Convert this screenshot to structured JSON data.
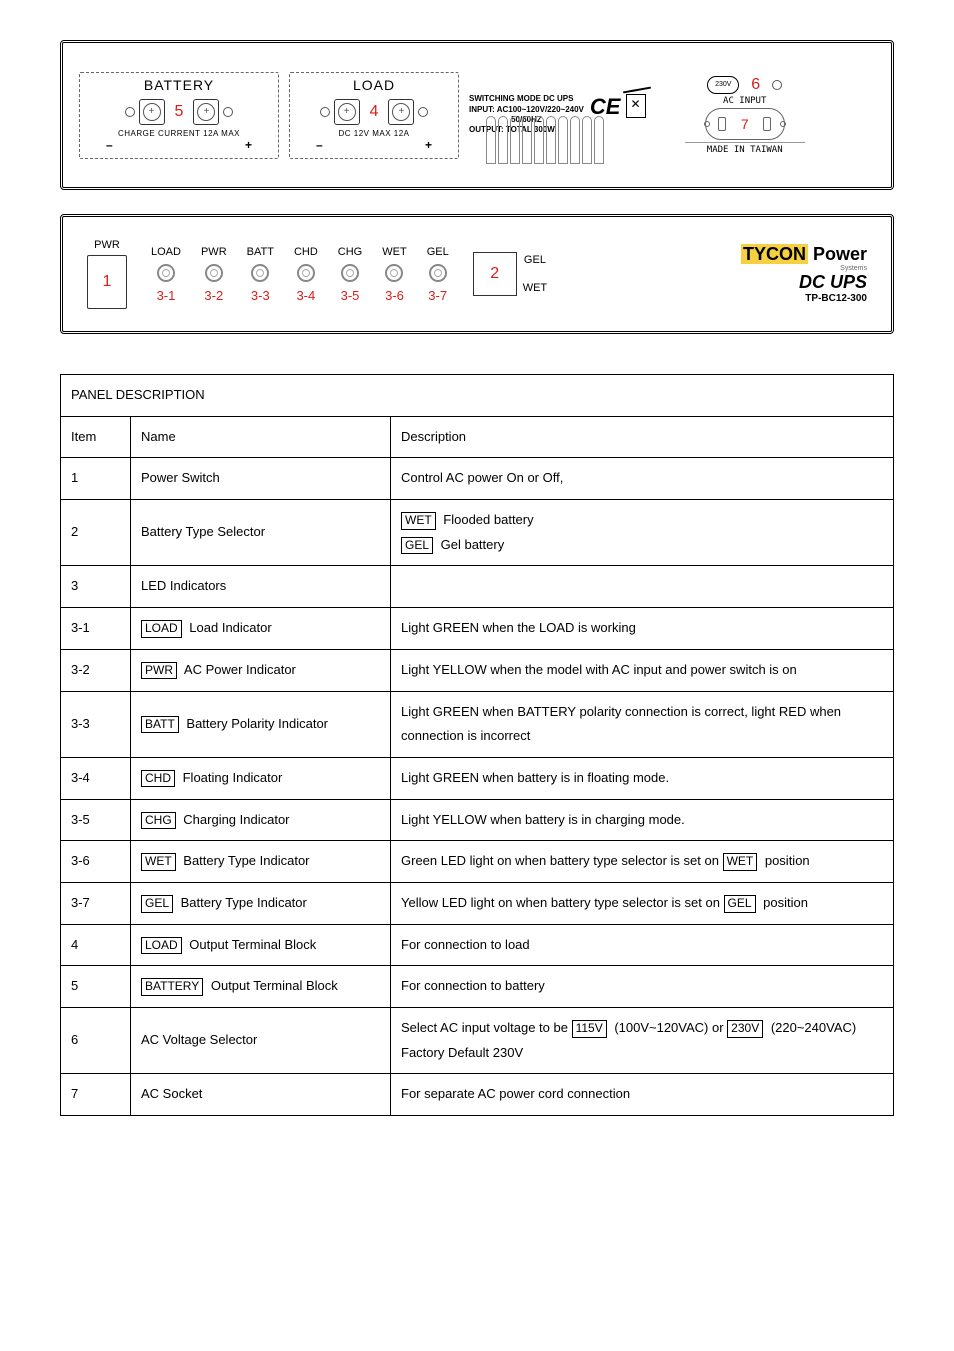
{
  "topDiagram": {
    "battery": {
      "title": "BATTERY",
      "num": "5",
      "sub": "CHARGE CURRENT 12A MAX",
      "minus": "–",
      "plus": "+"
    },
    "load": {
      "title": "LOAD",
      "num": "4",
      "sub": "DC 12V   MAX 12A",
      "minus": "–",
      "plus": "+"
    },
    "spec": {
      "l1": "SWITCHING MODE DC UPS",
      "l2": "INPUT: AC100~120V/220~240V",
      "l3": "50/60HZ",
      "l4": "OUTPUT: TOTAL 300W"
    },
    "ce": "CE",
    "voltSel": "230V",
    "num6": "6",
    "num7": "7",
    "acInput": "AC INPUT",
    "made": "MADE  IN  TAIWAN"
  },
  "bottomDiagram": {
    "pwr": {
      "label": "PWR",
      "num": "1"
    },
    "leds": [
      {
        "label": "LOAD",
        "num": "3-1"
      },
      {
        "label": "PWR",
        "num": "3-2"
      },
      {
        "label": "BATT",
        "num": "3-3"
      },
      {
        "label": "CHD",
        "num": "3-4"
      },
      {
        "label": "CHG",
        "num": "3-5"
      },
      {
        "label": "WET",
        "num": "3-6"
      },
      {
        "label": "GEL",
        "num": "3-7"
      }
    ],
    "selector": {
      "top": "GEL",
      "num": "2",
      "bottom": "WET"
    },
    "brand": {
      "logo1": "TYCON",
      "logo2": " Power",
      "sub": "Systems",
      "prod": "DC UPS",
      "model": "TP-BC12-300"
    }
  },
  "table": {
    "header": "PANEL DESCRIPTION",
    "cols": {
      "c1": "Item",
      "c2": "Name",
      "c3": "Description"
    },
    "rows": [
      {
        "item": "1",
        "name": "Power Switch",
        "desc": "Control AC power On or Off,"
      },
      {
        "item": "2",
        "name": "Battery Type Selector",
        "descLines": [
          {
            "box": "WET",
            "text": "  Flooded battery"
          },
          {
            "box": "GEL",
            "text": "  Gel battery"
          }
        ]
      },
      {
        "item": "3",
        "name": "LED Indicators",
        "desc": ""
      },
      {
        "item": "3-1",
        "nameBox": "LOAD",
        "nameText": "  Load Indicator",
        "desc": "Light GREEN when the LOAD is working"
      },
      {
        "item": "3-2",
        "nameBox": "PWR",
        "nameText": "  AC Power Indicator",
        "desc": "Light YELLOW when the model with AC input and power switch is on"
      },
      {
        "item": "3-3",
        "nameBox": "BATT",
        "nameText": "  Battery Polarity Indicator",
        "desc": "Light GREEN when BATTERY polarity connection is correct, light RED when connection is incorrect"
      },
      {
        "item": "3-4",
        "nameBox": "CHD",
        "nameText": "  Floating Indicator",
        "desc": "Light GREEN when battery is in floating mode."
      },
      {
        "item": "3-5",
        "nameBox": "CHG",
        "nameText": "  Charging Indicator",
        "desc": "Light YELLOW when battery is in charging mode."
      },
      {
        "item": "3-6",
        "nameBox": "WET",
        "nameText": "  Battery Type Indicator",
        "descParts": [
          {
            "text": "Green LED light on when battery type selector is set on "
          },
          {
            "box": "WET"
          },
          {
            "text": " position"
          }
        ]
      },
      {
        "item": "3-7",
        "nameBox": "GEL",
        "nameText": "  Battery Type Indicator",
        "descParts": [
          {
            "text": "Yellow LED light on when battery type selector is set on "
          },
          {
            "box": "GEL"
          },
          {
            "text": " position"
          }
        ]
      },
      {
        "item": "4",
        "nameBox": "LOAD",
        "nameText": " Output Terminal Block",
        "desc": "For connection to load"
      },
      {
        "item": "5",
        "nameBox": "BATTERY",
        "nameText": " Output Terminal Block",
        "desc": "For connection to battery"
      },
      {
        "item": "6",
        "name": "AC Voltage Selector",
        "descParts": [
          {
            "text": "Select AC input voltage to be "
          },
          {
            "box": "115V"
          },
          {
            "text": " (100V~120VAC) or "
          },
          {
            "box": "230V"
          },
          {
            "text": " (220~240VAC) Factory Default 230V"
          }
        ]
      },
      {
        "item": "7",
        "name": "AC Socket",
        "desc": "For separate AC power cord connection"
      }
    ]
  }
}
